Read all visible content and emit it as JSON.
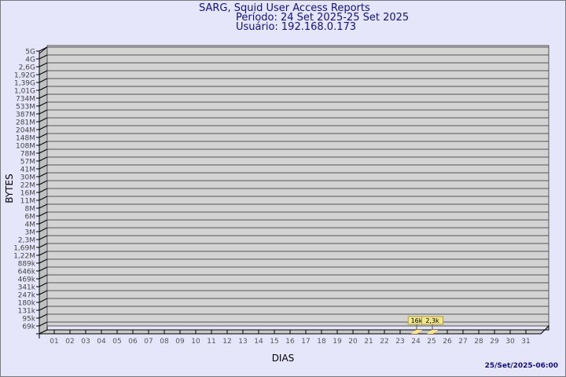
{
  "header": {
    "title": "SARG, Squid User Access Reports",
    "period": "Período: 24 Set 2025-25 Set 2025",
    "user": "Usuário: 192.168.0.173"
  },
  "footer": {
    "timestamp": "25/Set/2025-06:00"
  },
  "colors": {
    "background": "#e6e6fa",
    "title": "#10108c",
    "wall": "#d3d3d3",
    "bar": "#ffe680",
    "label_box": "#f0e68c"
  },
  "chart_data": {
    "type": "bar",
    "xlabel": "DIAS",
    "ylabel": "BYTES",
    "grid": true,
    "yscale": "log",
    "y_ticks": [
      "5G",
      "4G",
      "2,6G",
      "1,92G",
      "1,39G",
      "1,01G",
      "734M",
      "533M",
      "387M",
      "281M",
      "204M",
      "148M",
      "108M",
      "78M",
      "57M",
      "41M",
      "30M",
      "22M",
      "16M",
      "11M",
      "8M",
      "6M",
      "4M",
      "3M",
      "2,3M",
      "1,69M",
      "1,22M",
      "889k",
      "646k",
      "469k",
      "341k",
      "247k",
      "180k",
      "131k",
      "95k",
      "69k"
    ],
    "categories": [
      "01",
      "02",
      "03",
      "04",
      "05",
      "06",
      "07",
      "08",
      "09",
      "10",
      "11",
      "12",
      "13",
      "14",
      "15",
      "16",
      "17",
      "18",
      "19",
      "20",
      "21",
      "22",
      "23",
      "24",
      "25",
      "26",
      "27",
      "28",
      "29",
      "30",
      "31"
    ],
    "bars": [
      {
        "day": "24",
        "label": "16k"
      },
      {
        "day": "25",
        "label": "2,3k"
      }
    ]
  }
}
